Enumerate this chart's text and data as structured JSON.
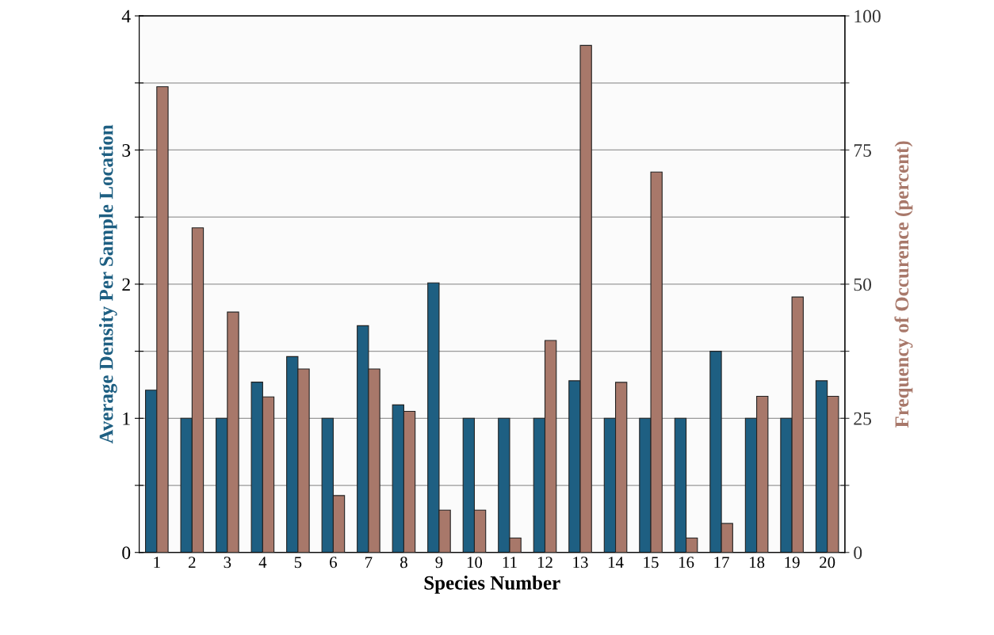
{
  "chart_data": {
    "type": "bar",
    "xlabel": "Species Number",
    "ylabel": "Average Density Per Sample Location",
    "y2label": "Frequency of Occurence (percent)",
    "categories": [
      "1",
      "2",
      "3",
      "4",
      "5",
      "6",
      "7",
      "8",
      "9",
      "10",
      "11",
      "12",
      "13",
      "14",
      "15",
      "16",
      "17",
      "18",
      "19",
      "20"
    ],
    "series": [
      {
        "color": "#1e5f82",
        "values": [
          1.21,
          1.0,
          1.0,
          1.27,
          1.46,
          1.0,
          1.69,
          1.1,
          2.01,
          1.0,
          1.0,
          1.0,
          1.28,
          1.0,
          1.0,
          1.0,
          1.5,
          1.0,
          1.0,
          1.28
        ]
      },
      {
        "color": "#a8786a",
        "axis": "y2",
        "values": [
          86.8,
          60.5,
          44.8,
          29.0,
          34.2,
          10.6,
          34.2,
          26.3,
          7.9,
          7.9,
          2.7,
          39.5,
          94.5,
          31.7,
          70.9,
          2.7,
          5.4,
          29.1,
          47.6,
          29.1
        ]
      }
    ],
    "ylim": [
      0,
      4
    ],
    "yticks": [
      0,
      {
        "value": 0.5,
        "label": null
      },
      1,
      {
        "value": 1.5,
        "label": null
      },
      2,
      {
        "value": 2.5,
        "label": null
      },
      3,
      {
        "value": 3.5,
        "label": null
      },
      4
    ],
    "y2lim": [
      0,
      100
    ],
    "y2ticks": [
      0,
      {
        "value": 12.5,
        "label": null
      },
      25,
      {
        "value": 37.5,
        "label": null
      },
      50,
      {
        "value": 62.5,
        "label": null
      },
      75,
      {
        "value": 87.5,
        "label": null
      },
      100
    ],
    "grid": "y",
    "legend": false
  }
}
